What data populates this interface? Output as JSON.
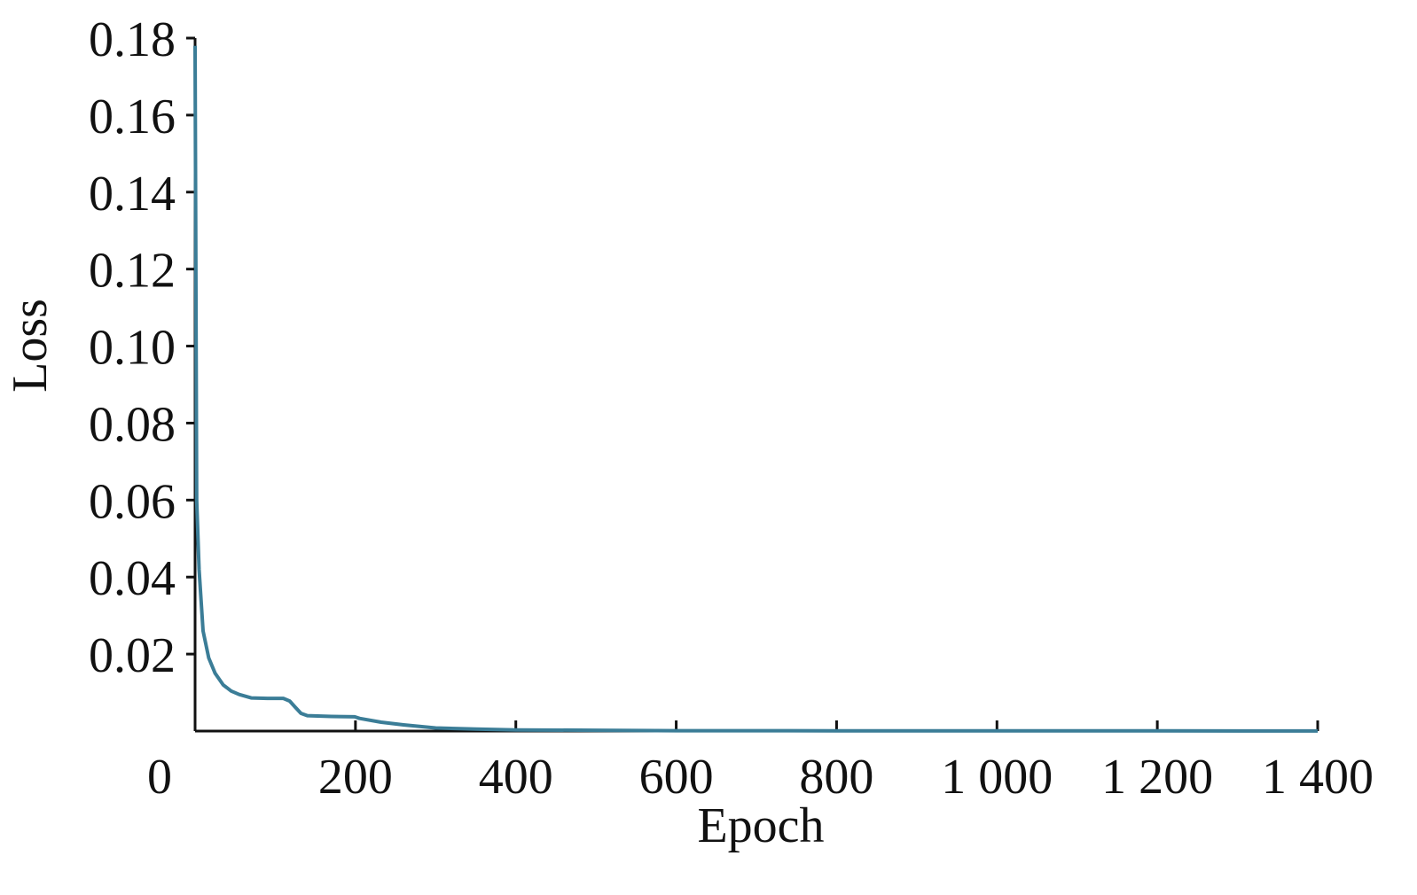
{
  "chart_data": {
    "type": "line",
    "x_label": "Epoch",
    "y_label": "Loss",
    "x": [
      0,
      2,
      5,
      10,
      17,
      25,
      35,
      45,
      55,
      70,
      90,
      110,
      118,
      125,
      132,
      140,
      170,
      199,
      205,
      232,
      260,
      300,
      350,
      400,
      500,
      600,
      800,
      1000,
      1200,
      1400
    ],
    "series": [
      {
        "name": "Loss",
        "color": "#3b7d97",
        "values": [
          0.178,
          0.06,
          0.042,
          0.026,
          0.019,
          0.015,
          0.012,
          0.0104,
          0.0095,
          0.0086,
          0.0085,
          0.0085,
          0.0078,
          0.0062,
          0.0046,
          0.004,
          0.0038,
          0.0037,
          0.0033,
          0.0023,
          0.0016,
          0.0008,
          0.0005,
          0.0003,
          0.0002,
          0.0001,
          6e-05,
          5e-05,
          4e-05,
          3e-05
        ]
      }
    ],
    "xlim": [
      0,
      1400
    ],
    "ylim": [
      0,
      0.18
    ],
    "xticks": [
      0,
      200,
      400,
      600,
      800,
      {
        "value": 1000,
        "label": "1 000"
      },
      {
        "value": 1200,
        "label": "1 200"
      },
      {
        "value": 1400,
        "label": "1 400"
      }
    ],
    "yticks": [
      0.02,
      0.04,
      0.06,
      0.08,
      {
        "value": 0.1,
        "label": "0.10"
      },
      0.12,
      0.14,
      0.16,
      0.18
    ]
  }
}
